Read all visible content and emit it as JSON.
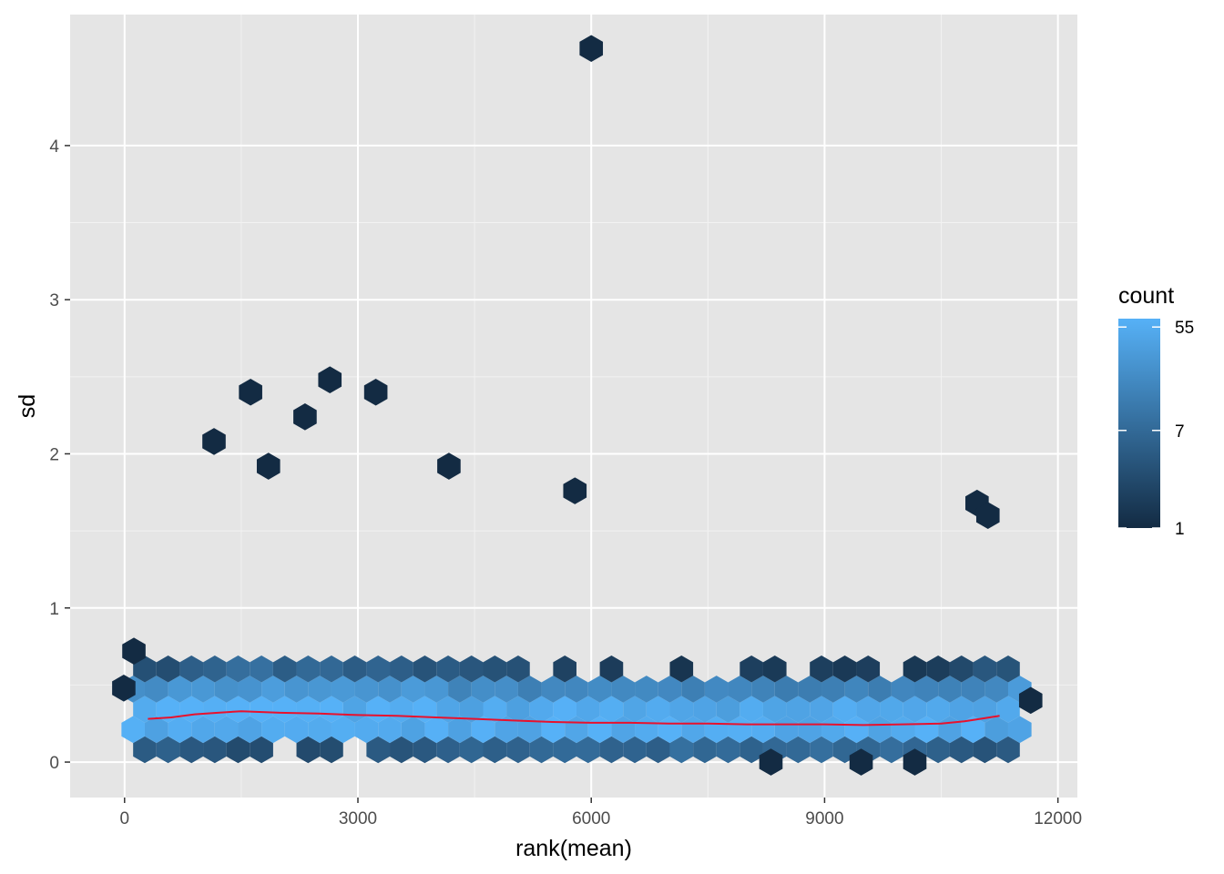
{
  "chart_data": {
    "type": "hexbin",
    "title": "",
    "xlabel": "rank(mean)",
    "ylabel": "sd",
    "xlim": [
      -700,
      12250
    ],
    "ylim": [
      -0.23,
      4.85
    ],
    "x_ticks": [
      0,
      3000,
      6000,
      9000,
      12000
    ],
    "x_tick_labels": [
      "0",
      "3000",
      "6000",
      "9000",
      "12000"
    ],
    "y_ticks": [
      0,
      1,
      2,
      3,
      4
    ],
    "y_tick_labels": [
      "0",
      "1",
      "2",
      "3",
      "4"
    ],
    "grid": true,
    "legend": {
      "title": "count",
      "position": "right",
      "scale": "log",
      "breaks": [
        55,
        7,
        1
      ],
      "break_labels": [
        "55",
        "7",
        "1"
      ],
      "range": [
        1,
        65
      ]
    },
    "colors": {
      "panel": "#e5e5e5",
      "grid": "#ffffff",
      "low": "#132b43",
      "high": "#56b1f7",
      "trend": "#e8112d"
    },
    "hex_binwidth_x": 300,
    "outliers": [
      {
        "x": 6000,
        "y": 4.63
      },
      {
        "x": 1150,
        "y": 2.08
      },
      {
        "x": 1620,
        "y": 2.4
      },
      {
        "x": 2320,
        "y": 2.24
      },
      {
        "x": 2640,
        "y": 2.48
      },
      {
        "x": 3230,
        "y": 2.4
      },
      {
        "x": 1850,
        "y": 1.92
      },
      {
        "x": 4170,
        "y": 1.92
      },
      {
        "x": 5790,
        "y": 1.76
      },
      {
        "x": 10960,
        "y": 1.68
      },
      {
        "x": 11100,
        "y": 1.6
      },
      {
        "x": 11650,
        "y": 0.4
      },
      {
        "x": 8310,
        "y": 0.0
      },
      {
        "x": 9470,
        "y": 0.0
      },
      {
        "x": 10160,
        "y": 0.0
      },
      {
        "x": -10,
        "y": 0.48
      },
      {
        "x": 120,
        "y": 0.72
      }
    ],
    "trend_line": {
      "name": "smooth",
      "x": [
        300,
        600,
        900,
        1200,
        1500,
        2000,
        2500,
        3000,
        3500,
        4000,
        4500,
        5000,
        5500,
        6000,
        6500,
        7000,
        7500,
        8000,
        8500,
        9000,
        9500,
        10000,
        10500,
        10800,
        11000,
        11250
      ],
      "y": [
        0.28,
        0.29,
        0.31,
        0.32,
        0.33,
        0.32,
        0.315,
        0.305,
        0.3,
        0.29,
        0.28,
        0.27,
        0.26,
        0.255,
        0.255,
        0.25,
        0.25,
        0.245,
        0.245,
        0.245,
        0.24,
        0.245,
        0.25,
        0.265,
        0.28,
        0.3
      ]
    }
  }
}
